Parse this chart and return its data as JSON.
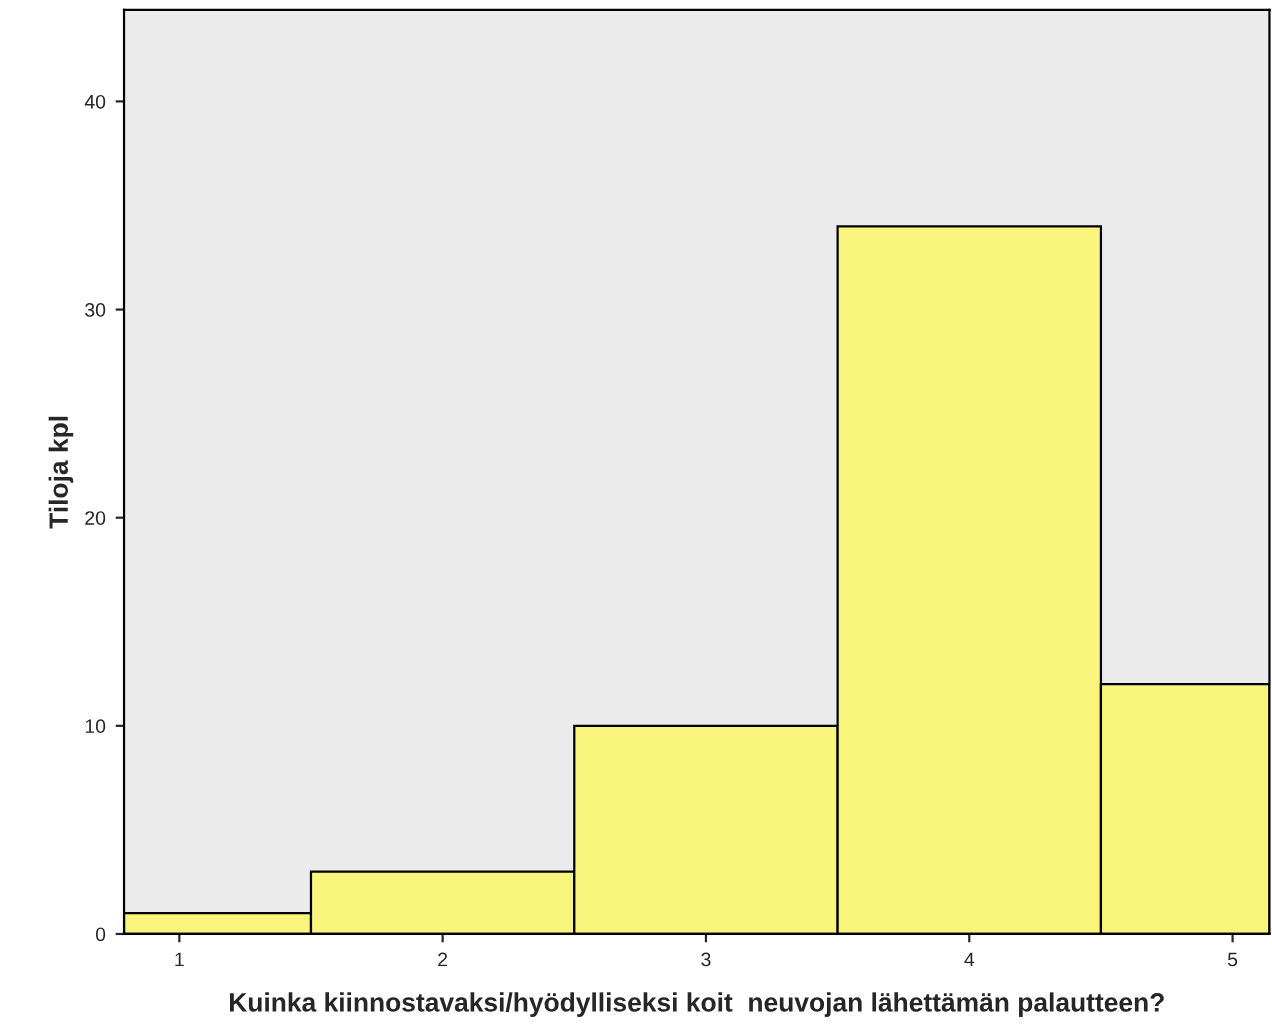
{
  "chart_data": {
    "type": "histogram",
    "xlabel": "Kuinka kiinnostavaksi/hyödylliseksi koit  neuvojan lähettämän palautteen?",
    "ylabel": "Tiloja kpl",
    "bins": [
      0.79,
      1.5,
      2.5,
      3.5,
      4.5,
      5.14
    ],
    "values": [
      1,
      3,
      10,
      34,
      12
    ],
    "color": "#f8f47c",
    "xlim": [
      0.79,
      5.14
    ],
    "xticks": [
      1,
      2,
      3,
      4,
      5
    ],
    "ylim": [
      0,
      44.4
    ],
    "yticks": [
      0,
      10,
      20,
      30,
      40
    ],
    "grid": false
  }
}
